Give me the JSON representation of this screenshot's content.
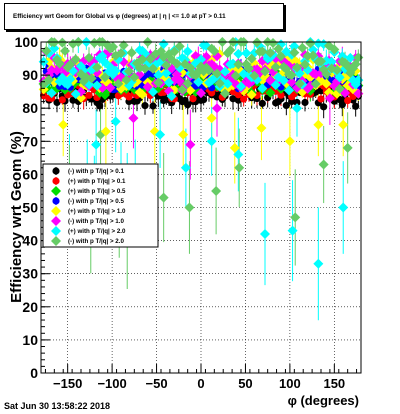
{
  "title": "Efficiency wrt Geom for Global vs φ (degrees) at | η | <= 1.0 at pT > 0.11",
  "timestamp": "Sat Jun 30 13:58:22 2018",
  "chart_data": {
    "type": "scatter",
    "xlabel": "φ (degrees)",
    "ylabel": "Efficiency wrt Geom (%)",
    "xlim": [
      -180,
      180
    ],
    "ylim": [
      0,
      100
    ],
    "x_ticks": [
      -150,
      -100,
      -50,
      0,
      50,
      100,
      150
    ],
    "y_ticks": [
      0,
      10,
      20,
      30,
      40,
      50,
      60,
      70,
      80,
      90,
      100
    ],
    "grid": true,
    "legend_position": "left-middle",
    "series": [
      {
        "name": "(-) with p T/|q| > 0.1",
        "color": "#000000",
        "marker": "circle",
        "band": [
          81,
          86
        ],
        "scatter": 1.5
      },
      {
        "name": "(+) with p T/|q| > 0.1",
        "color": "#ff0000",
        "marker": "circle",
        "band": [
          83,
          88
        ],
        "scatter": 1.5
      },
      {
        "name": "(+) with p T/|q| > 0.5",
        "color": "#00dd00",
        "marker": "diamond",
        "band": [
          85,
          90
        ],
        "scatter": 2
      },
      {
        "name": "(-) with p T/|q| > 0.5",
        "color": "#0000ff",
        "marker": "circle",
        "band": [
          86,
          92
        ],
        "scatter": 2
      },
      {
        "name": "(+) with p T/|q| > 1.0",
        "color": "#ffff00",
        "marker": "diamond",
        "band": [
          85,
          95
        ],
        "scatter": 4
      },
      {
        "name": "(-) with p T/|q| > 1.0",
        "color": "#ff00ff",
        "marker": "diamond",
        "band": [
          86,
          96
        ],
        "scatter": 4
      },
      {
        "name": "(+) with p T/|q| > 2.0",
        "color": "#00ffff",
        "marker": "diamond",
        "band": [
          85,
          99
        ],
        "scatter": 6
      },
      {
        "name": "(-) with p T/|q| > 2.0",
        "color": "#66cc66",
        "marker": "diamond",
        "band": [
          86,
          100
        ],
        "scatter": 6
      }
    ],
    "outliers": [
      {
        "series": 4,
        "x": -155,
        "y": 75
      },
      {
        "series": 6,
        "x": -148,
        "y": 60
      },
      {
        "series": 7,
        "x": -148,
        "y": 56
      },
      {
        "series": 6,
        "x": -128,
        "y": 58
      },
      {
        "series": 7,
        "x": -124,
        "y": 45
      },
      {
        "series": 6,
        "x": -120,
        "y": 52
      },
      {
        "series": 6,
        "x": -118,
        "y": 69
      },
      {
        "series": 7,
        "x": -113,
        "y": 72
      },
      {
        "series": 4,
        "x": -107,
        "y": 73
      },
      {
        "series": 6,
        "x": -96,
        "y": 76
      },
      {
        "series": 6,
        "x": -90,
        "y": 57
      },
      {
        "series": 7,
        "x": -92,
        "y": 49
      },
      {
        "series": 6,
        "x": -83,
        "y": 53
      },
      {
        "series": 7,
        "x": -83,
        "y": 41
      },
      {
        "series": 6,
        "x": -74,
        "y": 58
      },
      {
        "series": 5,
        "x": -76,
        "y": 77
      },
      {
        "series": 4,
        "x": -52,
        "y": 73
      },
      {
        "series": 6,
        "x": -46,
        "y": 72
      },
      {
        "series": 7,
        "x": -42,
        "y": 53
      },
      {
        "series": 4,
        "x": -20,
        "y": 72
      },
      {
        "series": 6,
        "x": -17,
        "y": 62
      },
      {
        "series": 7,
        "x": -13,
        "y": 50
      },
      {
        "series": 5,
        "x": -12,
        "y": 69
      },
      {
        "series": 4,
        "x": 12,
        "y": 77
      },
      {
        "series": 6,
        "x": 12,
        "y": 70
      },
      {
        "series": 7,
        "x": 17,
        "y": 55
      },
      {
        "series": 5,
        "x": 18,
        "y": 80
      },
      {
        "series": 4,
        "x": 38,
        "y": 68
      },
      {
        "series": 6,
        "x": 42,
        "y": 66
      },
      {
        "series": 7,
        "x": 43,
        "y": 62
      },
      {
        "series": 4,
        "x": 68,
        "y": 74
      },
      {
        "series": 6,
        "x": 72,
        "y": 42
      },
      {
        "series": 4,
        "x": 100,
        "y": 70
      },
      {
        "series": 6,
        "x": 103,
        "y": 43
      },
      {
        "series": 7,
        "x": 106,
        "y": 47
      },
      {
        "series": 6,
        "x": 108,
        "y": 80
      },
      {
        "series": 4,
        "x": 132,
        "y": 75
      },
      {
        "series": 6,
        "x": 132,
        "y": 33
      },
      {
        "series": 7,
        "x": 138,
        "y": 63
      },
      {
        "series": 5,
        "x": 145,
        "y": 83
      },
      {
        "series": 4,
        "x": 160,
        "y": 75
      },
      {
        "series": 6,
        "x": 160,
        "y": 50
      },
      {
        "series": 7,
        "x": 165,
        "y": 68
      }
    ]
  }
}
